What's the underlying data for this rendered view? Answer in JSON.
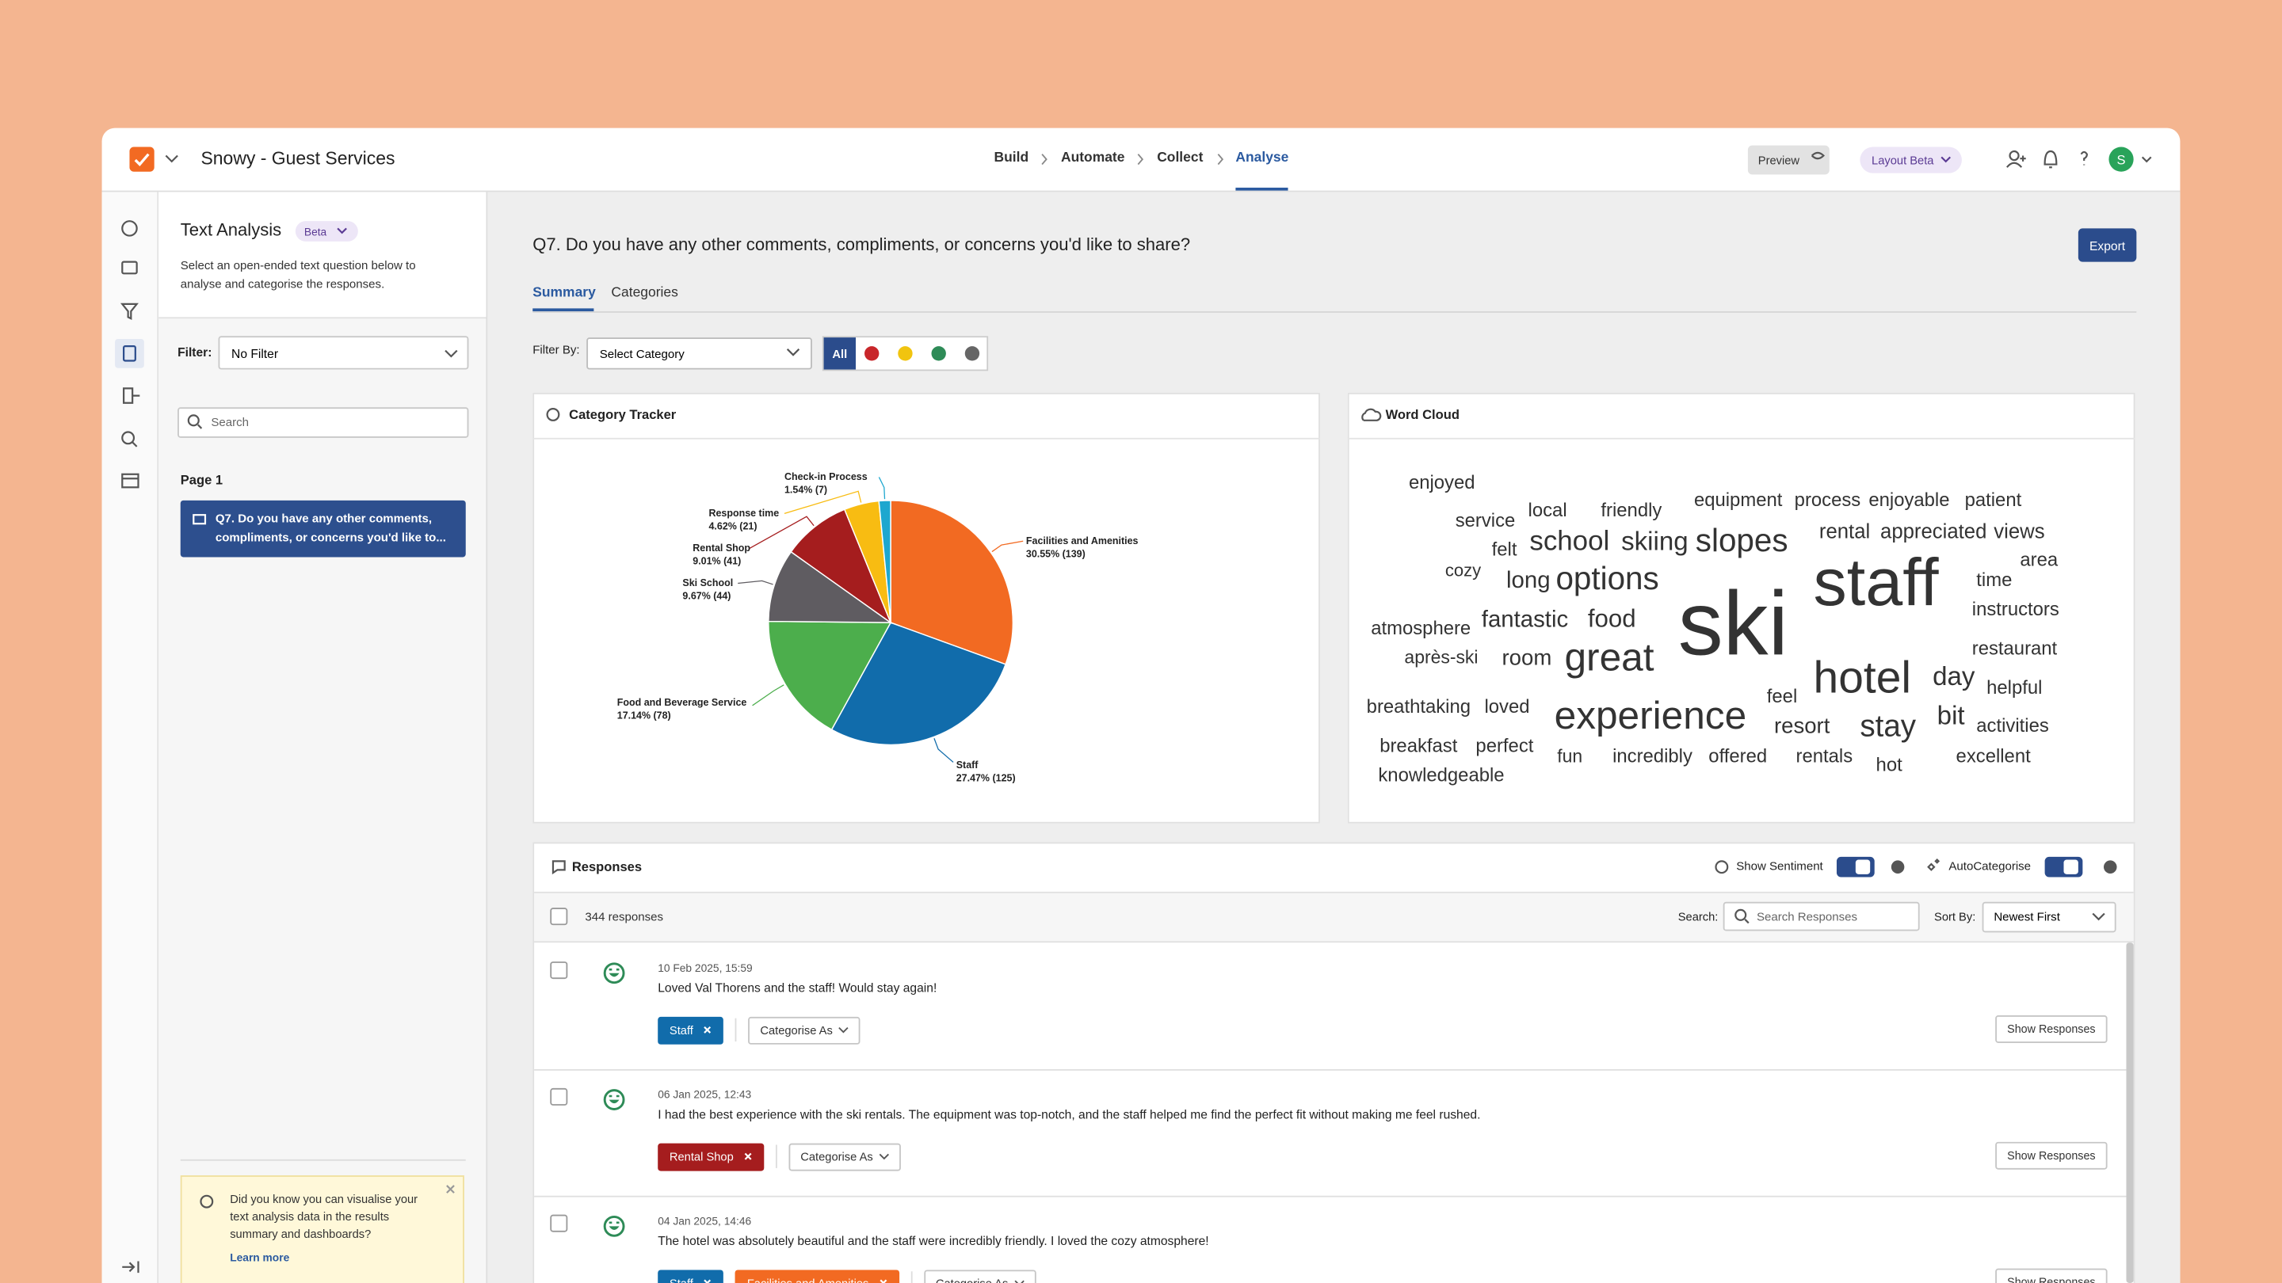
{
  "app": {
    "survey_name": "Snowy - Guest Services",
    "nav": [
      "Build",
      "Automate",
      "Collect",
      "Analyse"
    ],
    "preview": "Preview",
    "layout": "Layout Beta",
    "avatar": "S"
  },
  "sidebar": {
    "title": "Text Analysis",
    "badge": "Beta",
    "description": "Select an open-ended text question below to analyse and categorise the responses.",
    "filter_label": "Filter:",
    "filter_value": "No Filter",
    "search_placeholder": "Search",
    "page": "Page 1",
    "question": "Q7. Do you have any other comments, compliments, or concerns you'd like to...",
    "tip": "Did you know you can visualise your text analysis data in the results summary and dashboards?",
    "tip_link": "Learn more"
  },
  "main": {
    "question": "Q7. Do you have any other comments, compliments, or concerns you'd like to share?",
    "export": "Export",
    "tabs": [
      "Summary",
      "Categories"
    ],
    "filter_by": "Filter By:",
    "select_category": "Select Category",
    "all": "All"
  },
  "category_tracker": {
    "title": "Category Tracker",
    "type": "pie",
    "categories": [
      "Facilities and Amenities",
      "Staff",
      "Food and Beverage Service",
      "Ski School",
      "Rental Shop",
      "Response time",
      "Check-in Process"
    ],
    "values": [
      30.55,
      27.47,
      17.14,
      9.67,
      9.01,
      4.62,
      1.54
    ],
    "value_labels": [
      "30.55% (139)",
      "27.47% (125)",
      "17.14% (78)",
      "9.67% (44)",
      "9.01% (41)",
      "4.62% (21)",
      "1.54% (7)"
    ],
    "colors": [
      "#f26a22",
      "#116cab",
      "#4cae4c",
      "#5f5c61",
      "#a51d1e",
      "#f8bc12",
      "#1da7cf"
    ]
  },
  "word_cloud": {
    "title": "Word Cloud",
    "words": [
      "enjoyed",
      "service",
      "local",
      "friendly",
      "equipment",
      "process",
      "enjoyable",
      "patient",
      "felt",
      "school",
      "skiing",
      "slopes",
      "rental",
      "appreciated",
      "views",
      "cozy",
      "long",
      "options",
      "staff",
      "area",
      "time",
      "instructors",
      "ski",
      "atmosphere",
      "fantastic",
      "food",
      "restaurant",
      "après-ski",
      "room",
      "great",
      "hotel",
      "day",
      "helpful",
      "feel",
      "breathtaking",
      "loved",
      "experience",
      "resort",
      "stay",
      "bit",
      "activities",
      "breakfast",
      "perfect",
      "fun",
      "incredibly",
      "offered",
      "rentals",
      "hot",
      "excellent",
      "knowledgeable"
    ]
  },
  "responses": {
    "title": "Responses",
    "show_sentiment": "Show Sentiment",
    "autocategorise": "AutoCategorise",
    "count": "344 responses",
    "search_label": "Search:",
    "search_placeholder": "Search Responses",
    "sort_label": "Sort By:",
    "sort_value": "Newest First",
    "categorise_as": "Categorise As",
    "show_responses": "Show Responses",
    "items": [
      {
        "date": "10 Feb 2025, 15:59",
        "text": "Loved Val Thorens and the staff! Would stay again!",
        "tags": [
          {
            "label": "Staff",
            "color": "#116cab"
          }
        ]
      },
      {
        "date": "06 Jan 2025, 12:43",
        "text": "I had the best experience with the ski rentals. The equipment was top-notch, and the staff helped me find the perfect fit without making me feel rushed.",
        "tags": [
          {
            "label": "Rental Shop",
            "color": "#a51d1e"
          }
        ]
      },
      {
        "date": "04 Jan 2025, 14:46",
        "text": "The hotel was absolutely beautiful and the staff were incredibly friendly. I loved the cozy atmosphere!",
        "tags": [
          {
            "label": "Staff",
            "color": "#116cab"
          },
          {
            "label": "Facilities and Amenities",
            "color": "#f26a22"
          }
        ]
      }
    ]
  }
}
